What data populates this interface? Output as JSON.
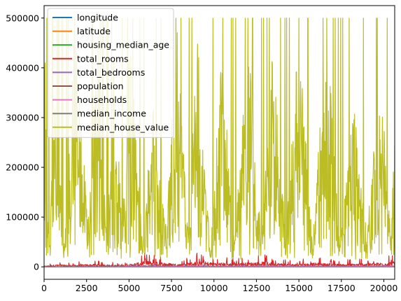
{
  "chart_data": {
    "type": "line",
    "title": "",
    "xlabel": "",
    "ylabel": "",
    "xlim": [
      0,
      20640
    ],
    "ylim": [
      -25000,
      525000
    ],
    "x_ticks": [
      0,
      2500,
      5000,
      7500,
      10000,
      12500,
      15000,
      17500,
      20000
    ],
    "x_tick_labels": [
      "0",
      "2500",
      "5000",
      "7500",
      "10000",
      "12500",
      "15000",
      "17500",
      "20000"
    ],
    "y_ticks": [
      0,
      100000,
      200000,
      300000,
      400000,
      500000
    ],
    "y_tick_labels": [
      "0",
      "100000",
      "200000",
      "300000",
      "400000",
      "500000"
    ],
    "grid": false,
    "legend_position": "top-left",
    "series": [
      {
        "name": "longitude",
        "color": "#1f77b4",
        "profile": [
          [
            0,
            -120
          ],
          [
            20640,
            -120
          ]
        ]
      },
      {
        "name": "latitude",
        "color": "#ff7f0e",
        "profile": [
          [
            0,
            36
          ],
          [
            20640,
            36
          ]
        ]
      },
      {
        "name": "housing_median_age",
        "color": "#2ca02c",
        "profile": [
          [
            0,
            29
          ],
          [
            20640,
            29
          ]
        ]
      },
      {
        "name": "total_rooms",
        "color": "#d62728",
        "profile": [
          [
            0,
            4000
          ],
          [
            700,
            12000
          ],
          [
            1500,
            9000
          ],
          [
            3000,
            14000
          ],
          [
            4600,
            8000
          ],
          [
            5200,
            16000
          ],
          [
            6000,
            30000
          ],
          [
            8000,
            14000
          ],
          [
            9000,
            28000
          ],
          [
            10200,
            22000
          ],
          [
            11000,
            18000
          ],
          [
            13000,
            26000
          ],
          [
            14500,
            14000
          ],
          [
            16000,
            20000
          ],
          [
            17500,
            14000
          ],
          [
            19500,
            20000
          ],
          [
            20640,
            26000
          ]
        ]
      },
      {
        "name": "total_bedrooms",
        "color": "#9467bd",
        "profile": [
          [
            0,
            500
          ],
          [
            6000,
            5000
          ],
          [
            9000,
            4500
          ],
          [
            14000,
            4000
          ],
          [
            20640,
            5000
          ]
        ]
      },
      {
        "name": "population",
        "color": "#8c564b",
        "profile": [
          [
            0,
            1400
          ],
          [
            6000,
            6000
          ],
          [
            9000,
            5500
          ],
          [
            15000,
            4500
          ],
          [
            20640,
            6000
          ]
        ]
      },
      {
        "name": "households",
        "color": "#e377c2",
        "profile": [
          [
            0,
            500
          ],
          [
            6000,
            4000
          ],
          [
            9000,
            4000
          ],
          [
            20640,
            4000
          ]
        ]
      },
      {
        "name": "median_income",
        "color": "#7f7f7f",
        "profile": [
          [
            0,
            4
          ],
          [
            20640,
            4
          ]
        ]
      },
      {
        "name": "median_house_value",
        "color": "#bcbd22",
        "profile": [
          [
            0,
            500001
          ],
          [
            300,
            80000
          ],
          [
            700,
            350000
          ],
          [
            1200,
            60000
          ],
          [
            1800,
            500001
          ],
          [
            2600,
            90000
          ],
          [
            3200,
            500001
          ],
          [
            3700,
            40000
          ],
          [
            4100,
            420000
          ],
          [
            4600,
            80000
          ],
          [
            5100,
            500001
          ],
          [
            5800,
            30000
          ],
          [
            6400,
            350000
          ],
          [
            7200,
            60000
          ],
          [
            7800,
            500001
          ],
          [
            8500,
            60000
          ],
          [
            9000,
            500001
          ],
          [
            9800,
            20000
          ],
          [
            10500,
            500001
          ],
          [
            11200,
            40000
          ],
          [
            12000,
            450000
          ],
          [
            12800,
            50000
          ],
          [
            13500,
            500001
          ],
          [
            14200,
            50000
          ],
          [
            15000,
            480000
          ],
          [
            15800,
            40000
          ],
          [
            16600,
            500001
          ],
          [
            17400,
            60000
          ],
          [
            18200,
            350000
          ],
          [
            19000,
            50000
          ],
          [
            19800,
            400000
          ],
          [
            20400,
            60000
          ],
          [
            20640,
            280000
          ]
        ]
      }
    ]
  }
}
